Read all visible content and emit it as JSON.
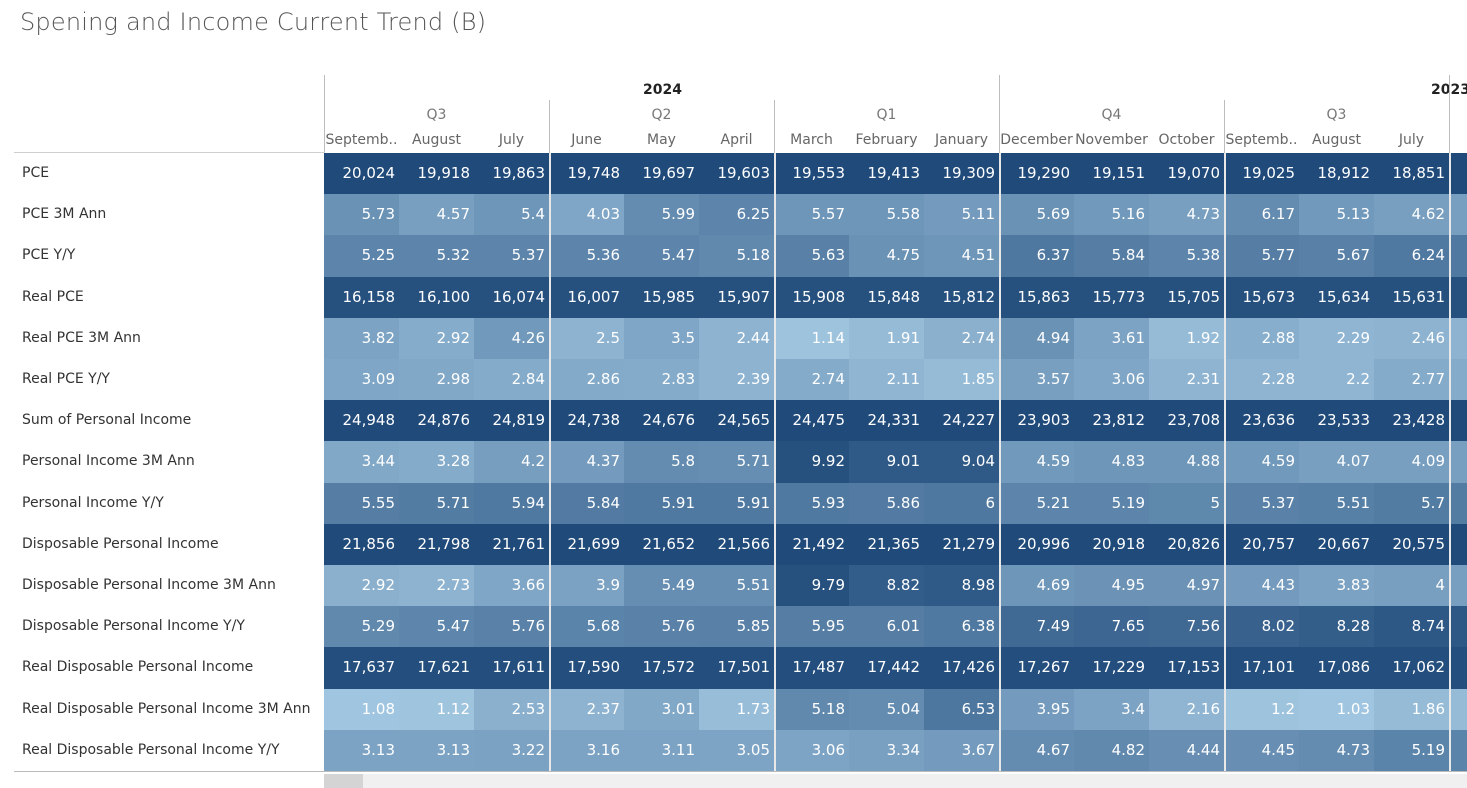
{
  "title": "Spening and Income Current Trend (B)",
  "years": [
    {
      "label": "2024",
      "left": 643
    },
    {
      "label": "2023",
      "left": 1431
    }
  ],
  "quarters": [
    "Q3",
    "Q2",
    "Q1",
    "Q4",
    "Q3"
  ],
  "months": [
    "Septemb..",
    "August",
    "July",
    "June",
    "May",
    "April",
    "March",
    "February",
    "January",
    "December",
    "November",
    "October",
    "Septemb..",
    "August",
    "July"
  ],
  "rows": [
    {
      "label": "PCE",
      "values": [
        "20,024",
        "19,918",
        "19,863",
        "19,748",
        "19,697",
        "19,603",
        "19,553",
        "19,413",
        "19,309",
        "19,290",
        "19,151",
        "19,070",
        "19,025",
        "18,912",
        "18,851"
      ],
      "tones": [
        1,
        1,
        1,
        1,
        1,
        1,
        1,
        1,
        1,
        1,
        1,
        1,
        1,
        1,
        1
      ]
    },
    {
      "label": "PCE 3M Ann",
      "values": [
        "5.73",
        "4.57",
        "5.4",
        "4.03",
        "5.99",
        "6.25",
        "5.57",
        "5.58",
        "5.11",
        "5.69",
        "5.16",
        "4.73",
        "6.17",
        "5.13",
        "4.62"
      ],
      "tones": [
        0.45,
        0.35,
        0.42,
        0.3,
        0.5,
        0.55,
        0.42,
        0.42,
        0.38,
        0.45,
        0.4,
        0.35,
        0.5,
        0.4,
        0.35
      ]
    },
    {
      "label": "PCE Y/Y",
      "values": [
        "5.25",
        "5.32",
        "5.37",
        "5.36",
        "5.47",
        "5.18",
        "5.63",
        "4.75",
        "4.51",
        "6.37",
        "5.84",
        "5.38",
        "5.77",
        "5.67",
        "6.24"
      ],
      "tones": [
        0.55,
        0.55,
        0.55,
        0.55,
        0.55,
        0.52,
        0.58,
        0.45,
        0.42,
        0.65,
        0.6,
        0.55,
        0.6,
        0.58,
        0.64
      ]
    },
    {
      "label": "Real PCE",
      "values": [
        "16,158",
        "16,100",
        "16,074",
        "16,007",
        "15,985",
        "15,907",
        "15,908",
        "15,848",
        "15,812",
        "15,863",
        "15,773",
        "15,705",
        "15,673",
        "15,634",
        "15,631"
      ],
      "tones": [
        0.95,
        0.95,
        0.95,
        0.95,
        0.95,
        0.95,
        0.95,
        0.95,
        0.95,
        0.95,
        0.95,
        0.95,
        0.95,
        0.95,
        0.95
      ]
    },
    {
      "label": "Real PCE 3M Ann",
      "values": [
        "3.82",
        "2.92",
        "4.26",
        "2.5",
        "3.5",
        "2.44",
        "1.14",
        "1.91",
        "2.74",
        "4.94",
        "3.61",
        "1.92",
        "2.88",
        "2.29",
        "2.46"
      ],
      "tones": [
        0.32,
        0.25,
        0.4,
        0.2,
        0.3,
        0.2,
        0.08,
        0.14,
        0.22,
        0.45,
        0.32,
        0.14,
        0.24,
        0.18,
        0.2
      ]
    },
    {
      "label": "Real PCE Y/Y",
      "values": [
        "3.09",
        "2.98",
        "2.84",
        "2.86",
        "2.83",
        "2.39",
        "2.74",
        "2.11",
        "1.85",
        "3.57",
        "3.06",
        "2.31",
        "2.28",
        "2.2",
        "2.77"
      ],
      "tones": [
        0.3,
        0.28,
        0.26,
        0.27,
        0.26,
        0.2,
        0.26,
        0.18,
        0.14,
        0.35,
        0.3,
        0.19,
        0.19,
        0.18,
        0.26
      ]
    },
    {
      "label": "Sum of Personal Income",
      "values": [
        "24,948",
        "24,876",
        "24,819",
        "24,738",
        "24,676",
        "24,565",
        "24,475",
        "24,331",
        "24,227",
        "23,903",
        "23,812",
        "23,708",
        "23,636",
        "23,533",
        "23,428"
      ],
      "tones": [
        1,
        1,
        1,
        1,
        1,
        1,
        1,
        1,
        1,
        1,
        1,
        1,
        1,
        1,
        1
      ]
    },
    {
      "label": "Personal Income 3M Ann",
      "values": [
        "3.44",
        "3.28",
        "4.2",
        "4.37",
        "5.8",
        "5.71",
        "9.92",
        "9.01",
        "9.04",
        "4.59",
        "4.83",
        "4.88",
        "4.59",
        "4.07",
        "4.09"
      ],
      "tones": [
        0.28,
        0.26,
        0.36,
        0.38,
        0.5,
        0.48,
        0.95,
        0.88,
        0.88,
        0.4,
        0.42,
        0.42,
        0.4,
        0.35,
        0.35
      ]
    },
    {
      "label": "Personal Income Y/Y",
      "values": [
        "5.55",
        "5.71",
        "5.94",
        "5.84",
        "5.91",
        "5.91",
        "5.93",
        "5.86",
        "6",
        "5.21",
        "5.19",
        "5",
        "5.37",
        "5.51",
        "5.7"
      ],
      "tones": [
        0.6,
        0.62,
        0.64,
        0.63,
        0.64,
        0.64,
        0.64,
        0.63,
        0.65,
        0.55,
        0.55,
        0.53,
        0.57,
        0.59,
        0.62
      ]
    },
    {
      "label": "Disposable Personal Income",
      "values": [
        "21,856",
        "21,798",
        "21,761",
        "21,699",
        "21,652",
        "21,566",
        "21,492",
        "21,365",
        "21,279",
        "20,996",
        "20,918",
        "20,826",
        "20,757",
        "20,667",
        "20,575"
      ],
      "tones": [
        1,
        1,
        1,
        1,
        1,
        1,
        1,
        1,
        1,
        1,
        1,
        1,
        1,
        1,
        1
      ]
    },
    {
      "label": "Disposable Personal Income 3M Ann",
      "values": [
        "2.92",
        "2.73",
        "3.66",
        "3.9",
        "5.49",
        "5.51",
        "9.79",
        "8.82",
        "8.98",
        "4.69",
        "4.95",
        "4.97",
        "4.43",
        "3.83",
        "4"
      ],
      "tones": [
        0.22,
        0.2,
        0.3,
        0.33,
        0.48,
        0.48,
        0.95,
        0.86,
        0.88,
        0.42,
        0.44,
        0.44,
        0.38,
        0.33,
        0.35
      ]
    },
    {
      "label": "Disposable Personal Income Y/Y",
      "values": [
        "5.29",
        "5.47",
        "5.76",
        "5.68",
        "5.76",
        "5.85",
        "5.95",
        "6.01",
        "6.38",
        "7.49",
        "7.65",
        "7.56",
        "8.02",
        "8.28",
        "8.74"
      ],
      "tones": [
        0.52,
        0.54,
        0.57,
        0.56,
        0.57,
        0.58,
        0.6,
        0.6,
        0.64,
        0.76,
        0.78,
        0.77,
        0.82,
        0.85,
        0.9
      ]
    },
    {
      "label": "Real Disposable Personal Income",
      "values": [
        "17,637",
        "17,621",
        "17,611",
        "17,590",
        "17,572",
        "17,501",
        "17,487",
        "17,442",
        "17,426",
        "17,267",
        "17,229",
        "17,153",
        "17,101",
        "17,086",
        "17,062"
      ],
      "tones": [
        0.97,
        0.97,
        0.97,
        0.97,
        0.97,
        0.97,
        0.97,
        0.97,
        0.97,
        0.97,
        0.97,
        0.97,
        0.97,
        0.97,
        0.97
      ]
    },
    {
      "label": "Real Disposable Personal Income 3M Ann",
      "values": [
        "1.08",
        "1.12",
        "2.53",
        "2.37",
        "3.01",
        "1.73",
        "5.18",
        "5.04",
        "6.53",
        "3.95",
        "3.4",
        "2.16",
        "1.2",
        "1.03",
        "1.86"
      ],
      "tones": [
        0.06,
        0.07,
        0.22,
        0.2,
        0.28,
        0.12,
        0.52,
        0.5,
        0.66,
        0.38,
        0.32,
        0.18,
        0.08,
        0.06,
        0.14
      ]
    },
    {
      "label": "Real Disposable Personal Income Y/Y",
      "values": [
        "3.13",
        "3.13",
        "3.22",
        "3.16",
        "3.11",
        "3.05",
        "3.06",
        "3.34",
        "3.67",
        "4.67",
        "4.82",
        "4.44",
        "4.45",
        "4.73",
        "5.19"
      ],
      "tones": [
        0.32,
        0.32,
        0.33,
        0.32,
        0.32,
        0.31,
        0.31,
        0.34,
        0.38,
        0.5,
        0.52,
        0.47,
        0.47,
        0.5,
        0.56
      ]
    }
  ],
  "colors": {
    "light": "#a8cde6",
    "dark": "#1f4a7a",
    "edge": "#2c5d91"
  }
}
